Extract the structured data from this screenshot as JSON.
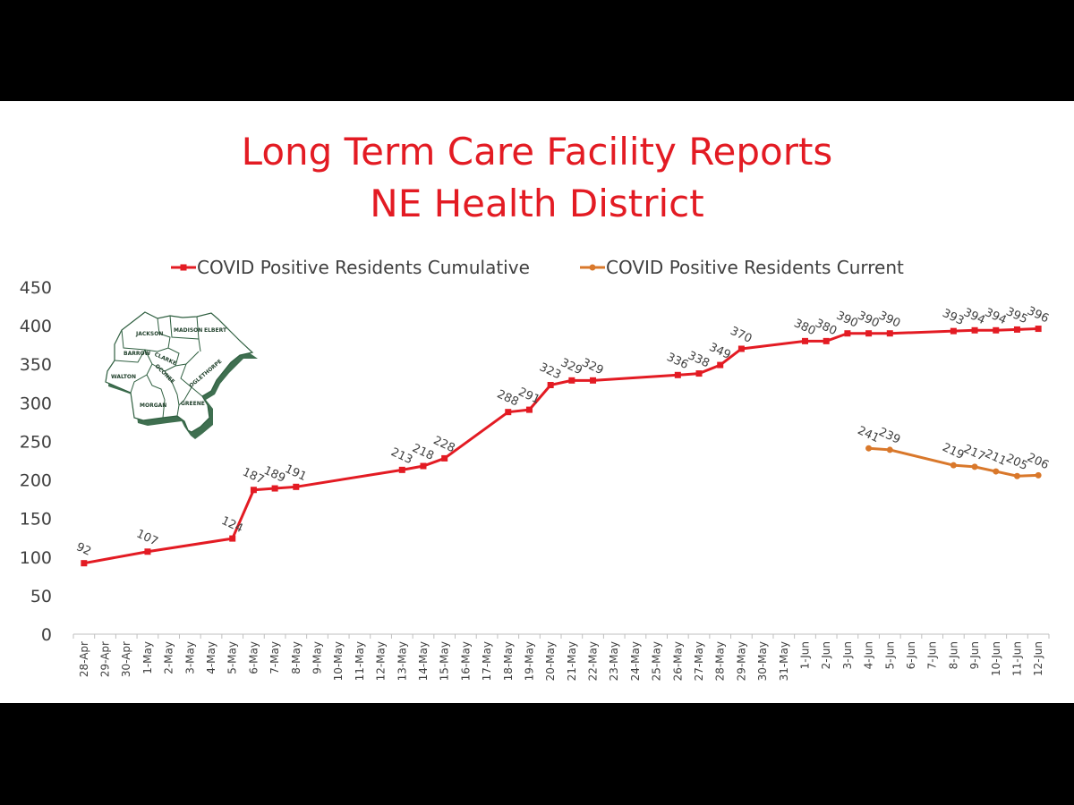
{
  "chart_data": {
    "type": "line",
    "title": "Long Term Care Facility Reports",
    "subtitle": "NE Health District",
    "legend_position": "top",
    "ylim": [
      0,
      450
    ],
    "yticks": [
      0,
      50,
      100,
      150,
      200,
      250,
      300,
      350,
      400,
      450
    ],
    "grid": false,
    "x": [
      "28-Apr",
      "29-Apr",
      "30-Apr",
      "1-May",
      "2-May",
      "3-May",
      "4-May",
      "5-May",
      "6-May",
      "7-May",
      "8-May",
      "9-May",
      "10-May",
      "11-May",
      "12-May",
      "13-May",
      "14-May",
      "15-May",
      "16-May",
      "17-May",
      "18-May",
      "19-May",
      "20-May",
      "21-May",
      "22-May",
      "23-May",
      "24-May",
      "25-May",
      "26-May",
      "27-May",
      "28-May",
      "29-May",
      "30-May",
      "31-May",
      "1-Jun",
      "2-Jun",
      "3-Jun",
      "4-Jun",
      "5-Jun",
      "6-Jun",
      "7-Jun",
      "8-Jun",
      "9-Jun",
      "10-Jun",
      "11-Jun",
      "12-Jun"
    ],
    "series": [
      {
        "name": "COVID Positive Residents Cumulative",
        "color": "#e31b23",
        "marker": "square",
        "points": [
          {
            "x": "28-Apr",
            "y": 92
          },
          {
            "x": "1-May",
            "y": 107
          },
          {
            "x": "5-May",
            "y": 124
          },
          {
            "x": "6-May",
            "y": 187
          },
          {
            "x": "7-May",
            "y": 189
          },
          {
            "x": "8-May",
            "y": 191
          },
          {
            "x": "13-May",
            "y": 213
          },
          {
            "x": "14-May",
            "y": 218
          },
          {
            "x": "15-May",
            "y": 228
          },
          {
            "x": "18-May",
            "y": 288
          },
          {
            "x": "19-May",
            "y": 291
          },
          {
            "x": "20-May",
            "y": 323
          },
          {
            "x": "21-May",
            "y": 329
          },
          {
            "x": "22-May",
            "y": 329
          },
          {
            "x": "26-May",
            "y": 336
          },
          {
            "x": "27-May",
            "y": 338
          },
          {
            "x": "28-May",
            "y": 349
          },
          {
            "x": "29-May",
            "y": 370
          },
          {
            "x": "1-Jun",
            "y": 380
          },
          {
            "x": "2-Jun",
            "y": 380
          },
          {
            "x": "3-Jun",
            "y": 390
          },
          {
            "x": "4-Jun",
            "y": 390
          },
          {
            "x": "5-Jun",
            "y": 390
          },
          {
            "x": "8-Jun",
            "y": 393
          },
          {
            "x": "9-Jun",
            "y": 394
          },
          {
            "x": "10-Jun",
            "y": 394
          },
          {
            "x": "11-Jun",
            "y": 395
          },
          {
            "x": "12-Jun",
            "y": 396
          }
        ]
      },
      {
        "name": "COVID Positive Residents Current",
        "color": "#d9782b",
        "marker": "circle",
        "points": [
          {
            "x": "4-Jun",
            "y": 241
          },
          {
            "x": "5-Jun",
            "y": 239
          },
          {
            "x": "8-Jun",
            "y": 219
          },
          {
            "x": "9-Jun",
            "y": 217
          },
          {
            "x": "10-Jun",
            "y": 211
          },
          {
            "x": "11-Jun",
            "y": 205
          },
          {
            "x": "12-Jun",
            "y": 206
          }
        ]
      }
    ]
  },
  "map": {
    "counties": [
      "JACKSON",
      "MADISON",
      "ELBERT",
      "BARROW",
      "CLARKE",
      "OCONEE",
      "OGLETHORPE",
      "WALTON",
      "MORGAN",
      "GREENE"
    ],
    "fill": "#ffffff",
    "stroke": "#2f5f40",
    "shadow": "#3f6f50"
  }
}
